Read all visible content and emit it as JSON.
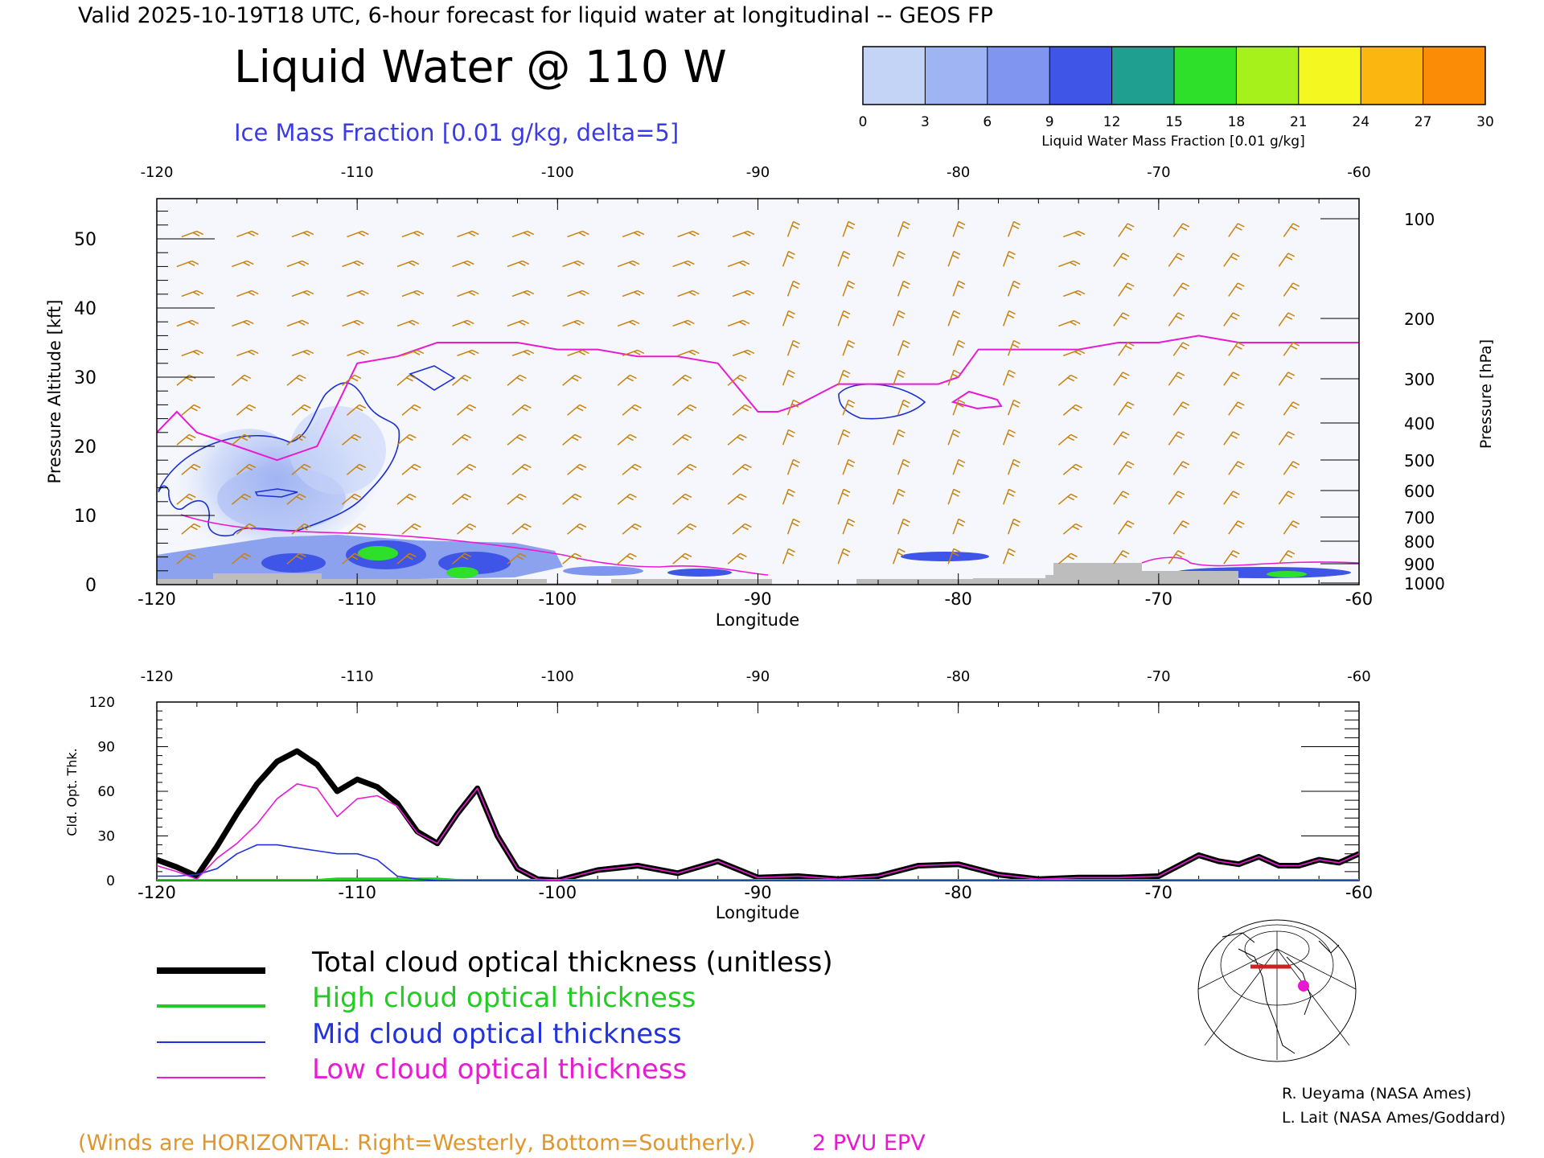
{
  "header": {
    "valid_line": "Valid 2025-10-19T18 UTC, 6-hour forecast for liquid water at longitudinal -- GEOS FP",
    "title": "Liquid Water @ 110 W",
    "subtitle": "Ice Mass Fraction [0.01 g/kg, delta=5]"
  },
  "colorbar": {
    "ticks": [
      "0",
      "3",
      "6",
      "9",
      "12",
      "15",
      "18",
      "21",
      "24",
      "27",
      "30"
    ],
    "label": "Liquid Water Mass Fraction [0.01 g/kg]",
    "colors": [
      "#f4f6fc",
      "#c3d4f6",
      "#9fb4f3",
      "#7f95ef",
      "#3f55e8",
      "#1f9f8f",
      "#2fe02a",
      "#a6f01c",
      "#f4f720",
      "#fbb70f",
      "#fb8c06",
      "#f82f06"
    ]
  },
  "top_panel": {
    "lon_ticks": [
      "-120",
      "-110",
      "-100",
      "-90",
      "-80",
      "-70",
      "-60"
    ],
    "xlabel": "Longitude",
    "ylabel_left": "Pressure Altitude [kft]",
    "left_ticks": [
      "0",
      "10",
      "20",
      "30",
      "40",
      "50"
    ],
    "ylabel_right": "Pressure [hPa]",
    "right_ticks": [
      "100",
      "200",
      "300",
      "400",
      "500",
      "600",
      "700",
      "800",
      "900",
      "1000"
    ],
    "colors": {
      "ice_contour": "#1c2fd1",
      "epv": "#e81bd3",
      "barbs": "#c8820f",
      "terrain": "#bdbdbd"
    }
  },
  "bottom_panel": {
    "lon_ticks": [
      "-120",
      "-110",
      "-100",
      "-90",
      "-80",
      "-70",
      "-60"
    ],
    "xlabel": "Longitude",
    "ylabel": "Cld. Opt. Thk.",
    "y_ticks": [
      "0",
      "30",
      "60",
      "90",
      "120"
    ]
  },
  "legend": {
    "items": [
      {
        "label": "Total cloud optical thickness (unitless)",
        "color": "#000000"
      },
      {
        "label": "High cloud optical thickness",
        "color": "#22cc22"
      },
      {
        "label": "Mid cloud optical thickness",
        "color": "#2233dd"
      },
      {
        "label": "Low cloud optical thickness",
        "color": "#e61ecf"
      }
    ]
  },
  "credits": {
    "line1": "R. Ueyama (NASA Ames)",
    "line2": "L. Lait (NASA Ames/Goddard)"
  },
  "footer": {
    "winds_note": "(Winds are HORIZONTAL: Right=Westerly, Bottom=Southerly.)",
    "epv_note": "2 PVU EPV",
    "winds_color": "#e0962e",
    "epv_color": "#e619d1"
  },
  "chart_data": [
    {
      "type": "heatmap",
      "title": "Liquid Water @ 110 W",
      "xlabel": "Longitude",
      "ylabel": "Pressure Altitude [kft]",
      "xlim": [
        -120,
        -60
      ],
      "ylim": [
        0,
        55
      ],
      "epv_2pvu_kft": {
        "lon": [
          -120,
          -119,
          -118,
          -116,
          -114,
          -112,
          -111,
          -110,
          -108,
          -106,
          -104,
          -102,
          -100,
          -98,
          -96,
          -94,
          -92,
          -90,
          -89,
          -88,
          -86,
          -84,
          -82,
          -81,
          -80,
          -79,
          -78,
          -76,
          -74,
          -72,
          -70,
          -68,
          -66,
          -64,
          -62,
          -60
        ],
        "kft": [
          22,
          25,
          22,
          20,
          18,
          20,
          26,
          32,
          33,
          35,
          35,
          35,
          34,
          34,
          33,
          33,
          32,
          25,
          25,
          26,
          29,
          29,
          29,
          29,
          30,
          34,
          34,
          34,
          34,
          35,
          35,
          36,
          35,
          35,
          35,
          35
        ]
      },
      "total_liquid_water_peak": {
        "lon": -110,
        "kft": 4,
        "value_0.01g_per_kg": 18
      }
    },
    {
      "type": "line",
      "xlabel": "Longitude",
      "ylabel": "Cld. Opt. Thk.",
      "xlim": [
        -120,
        -60
      ],
      "ylim": [
        0,
        120
      ],
      "x": [
        -120,
        -119,
        -118,
        -117,
        -116,
        -115,
        -114,
        -113,
        -112,
        -111,
        -110,
        -109,
        -108,
        -107,
        -106,
        -105,
        -104,
        -103,
        -102,
        -101,
        -100,
        -98,
        -96,
        -94,
        -92,
        -90,
        -88,
        -86,
        -84,
        -82,
        -80,
        -78,
        -76,
        -74,
        -72,
        -70,
        -68,
        -67,
        -66,
        -65,
        -64,
        -63,
        -62,
        -61,
        -60
      ],
      "series": [
        {
          "name": "Total cloud optical thickness (unitless)",
          "values": [
            14,
            9,
            3,
            23,
            45,
            65,
            80,
            87,
            78,
            60,
            68,
            63,
            52,
            33,
            25,
            45,
            62,
            30,
            8,
            1,
            0,
            7,
            10,
            5,
            13,
            2,
            3,
            1,
            3,
            10,
            11,
            4,
            1,
            2,
            2,
            3,
            17,
            13,
            11,
            16,
            10,
            10,
            14,
            12,
            18
          ]
        },
        {
          "name": "High cloud optical thickness",
          "values": [
            0,
            0,
            0,
            0,
            0,
            0,
            0,
            0,
            0,
            1,
            1,
            1,
            1,
            1,
            1,
            0,
            0,
            0,
            0,
            0,
            0,
            0,
            0,
            0,
            0,
            0,
            0,
            0,
            0,
            0,
            0,
            0,
            0,
            0,
            0,
            0,
            0,
            0,
            0,
            0,
            0,
            0,
            0,
            0,
            0
          ]
        },
        {
          "name": "Mid cloud optical thickness",
          "values": [
            3,
            3,
            4,
            8,
            18,
            24,
            24,
            22,
            20,
            18,
            18,
            14,
            3,
            1,
            0,
            0,
            0,
            0,
            0,
            0,
            0,
            0,
            0,
            0,
            0,
            0,
            0,
            0,
            0,
            0,
            0,
            0,
            0,
            0,
            0,
            0,
            0,
            0,
            0,
            0,
            0,
            0,
            0,
            0,
            0
          ]
        },
        {
          "name": "Low cloud optical thickness",
          "values": [
            10,
            6,
            1,
            15,
            25,
            38,
            55,
            65,
            62,
            43,
            55,
            57,
            50,
            32,
            25,
            45,
            62,
            30,
            8,
            1,
            0,
            7,
            10,
            5,
            13,
            2,
            3,
            1,
            3,
            10,
            11,
            4,
            1,
            2,
            2,
            3,
            17,
            13,
            11,
            16,
            10,
            10,
            14,
            12,
            18
          ]
        }
      ]
    }
  ]
}
